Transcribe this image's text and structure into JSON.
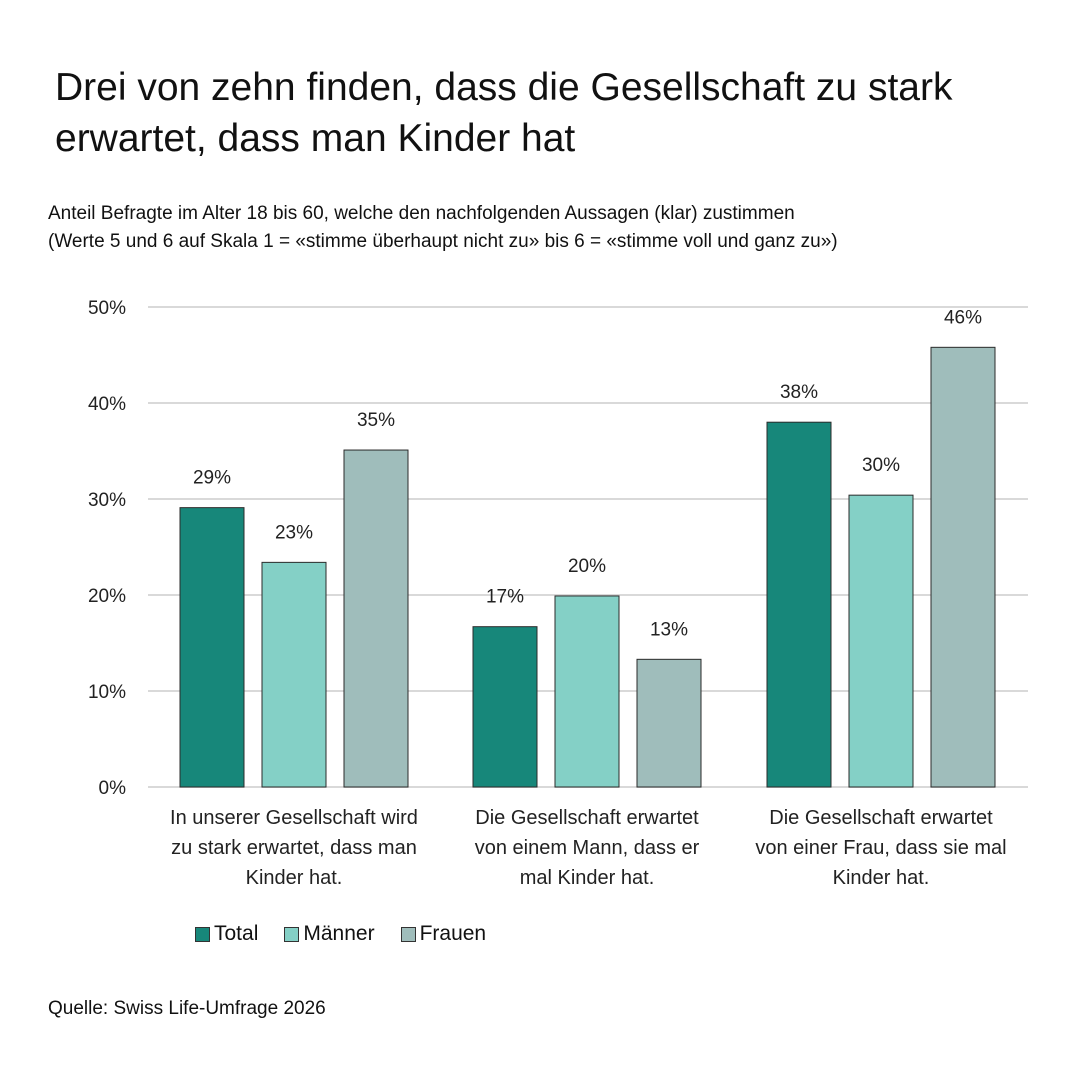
{
  "title": "Drei von zehn finden, dass die Gesellschaft zu stark erwartet, dass man Kinder hat",
  "subtitle_line1": "Anteil Befragte im Alter 18 bis 60, welche den nachfolgenden Aussagen (klar) zustimmen",
  "subtitle_line2": "(Werte 5 und 6 auf Skala 1 = «stimme überhaupt nicht zu» bis 6 = «stimme voll und ganz zu»)",
  "source": "Quelle: Swiss Life-Umfrage 2026",
  "colors": {
    "Total": "#17877a",
    "Männer": "#84d0c6",
    "Frauen": "#9fbdbb",
    "grid": "#d9d9d9"
  },
  "chart_data": {
    "type": "bar",
    "categories": [
      [
        "In unserer Gesellschaft wird",
        "zu stark erwartet, dass man",
        "Kinder hat."
      ],
      [
        "Die Gesellschaft erwartet",
        "von einem Mann, dass er",
        "mal Kinder hat."
      ],
      [
        "Die Gesellschaft erwartet",
        "von einer Frau, dass sie mal",
        "Kinder hat."
      ]
    ],
    "series": [
      {
        "name": "Total",
        "values": [
          29.1,
          16.7,
          38.0
        ],
        "labels": [
          "29%",
          "17%",
          "38%"
        ]
      },
      {
        "name": "Männer",
        "values": [
          23.4,
          19.9,
          30.4
        ],
        "labels": [
          "23%",
          "20%",
          "30%"
        ]
      },
      {
        "name": "Frauen",
        "values": [
          35.1,
          13.3,
          45.8
        ],
        "labels": [
          "35%",
          "13%",
          "46%"
        ]
      }
    ],
    "yticks": [
      "0%",
      "10%",
      "20%",
      "30%",
      "40%",
      "50%"
    ],
    "ylim": [
      0,
      50
    ],
    "grid": true,
    "legend_position": "bottom-left"
  }
}
